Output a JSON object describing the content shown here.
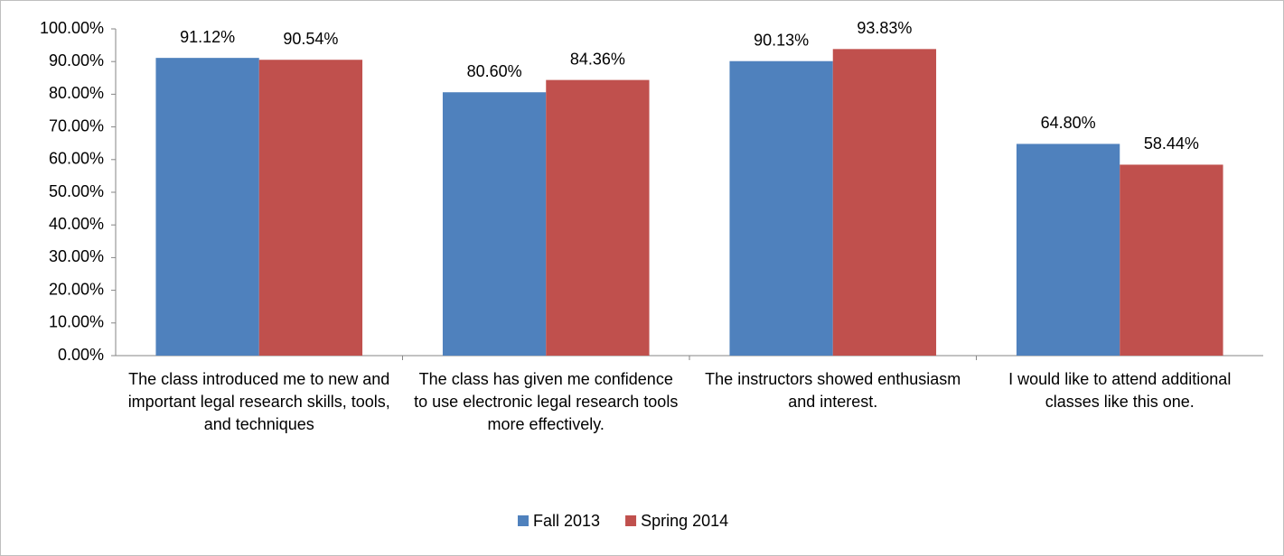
{
  "chart_data": {
    "type": "bar",
    "categories": [
      "The class introduced me to new and important legal research skills, tools, and techniques",
      "The class has given me confidence to use electronic legal research tools more effectively.",
      "The instructors showed enthusiasm and interest.",
      "I would like to attend additional classes like this one."
    ],
    "series": [
      {
        "name": "Fall 2013",
        "color": "#4f81bd",
        "values": [
          91.12,
          80.6,
          90.13,
          64.8
        ],
        "value_labels": [
          "91.12%",
          "80.60%",
          "90.13%",
          "64.80%"
        ]
      },
      {
        "name": "Spring 2014",
        "color": "#c0504d",
        "values": [
          90.54,
          84.36,
          93.83,
          58.44
        ],
        "value_labels": [
          "90.54%",
          "84.36%",
          "93.83%",
          "58.44%"
        ]
      }
    ],
    "ylim": [
      0,
      100
    ],
    "yticks": [
      {
        "value": 0,
        "label": "0.00%"
      },
      {
        "value": 10,
        "label": "10.00%"
      },
      {
        "value": 20,
        "label": "20.00%"
      },
      {
        "value": 30,
        "label": "30.00%"
      },
      {
        "value": 40,
        "label": "40.00%"
      },
      {
        "value": 50,
        "label": "50.00%"
      },
      {
        "value": 60,
        "label": "60.00%"
      },
      {
        "value": 70,
        "label": "70.00%"
      },
      {
        "value": 80,
        "label": "80.00%"
      },
      {
        "value": 90,
        "label": "90.00%"
      },
      {
        "value": 100,
        "label": "100.00%"
      }
    ],
    "grid": false,
    "legend": "bottom"
  }
}
